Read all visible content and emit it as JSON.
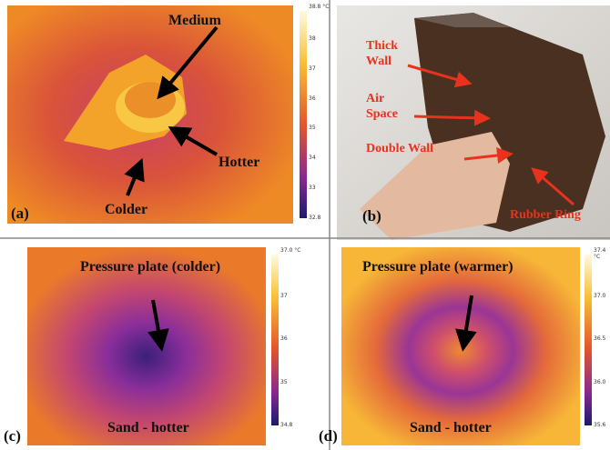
{
  "panels": [
    {
      "label": "(a)",
      "annotations": [
        "Medium",
        "Hotter",
        "Colder"
      ],
      "colorbar": {
        "max": "38.8 °C",
        "ticks": [
          "38",
          "37",
          "36",
          "35",
          "34",
          "33"
        ],
        "min": "32.8"
      }
    },
    {
      "label": "(b)",
      "annotations": [
        "Thick Wall",
        "Air Space",
        "Double Wall",
        "Rubber Ring"
      ]
    },
    {
      "label": "(c)",
      "annotations": [
        "Pressure plate (colder)",
        "Sand - hotter"
      ],
      "colorbar": {
        "max": "37.0 °C",
        "ticks": [
          "37",
          "36",
          "35"
        ],
        "min": "34.8"
      }
    },
    {
      "label": "(d)",
      "annotations": [
        "Pressure plate (warmer)",
        "Sand - hotter"
      ],
      "colorbar": {
        "max": "37.4 °C",
        "ticks": [
          "37.0",
          "36.5",
          "36.0"
        ],
        "min": "35.6"
      }
    }
  ]
}
